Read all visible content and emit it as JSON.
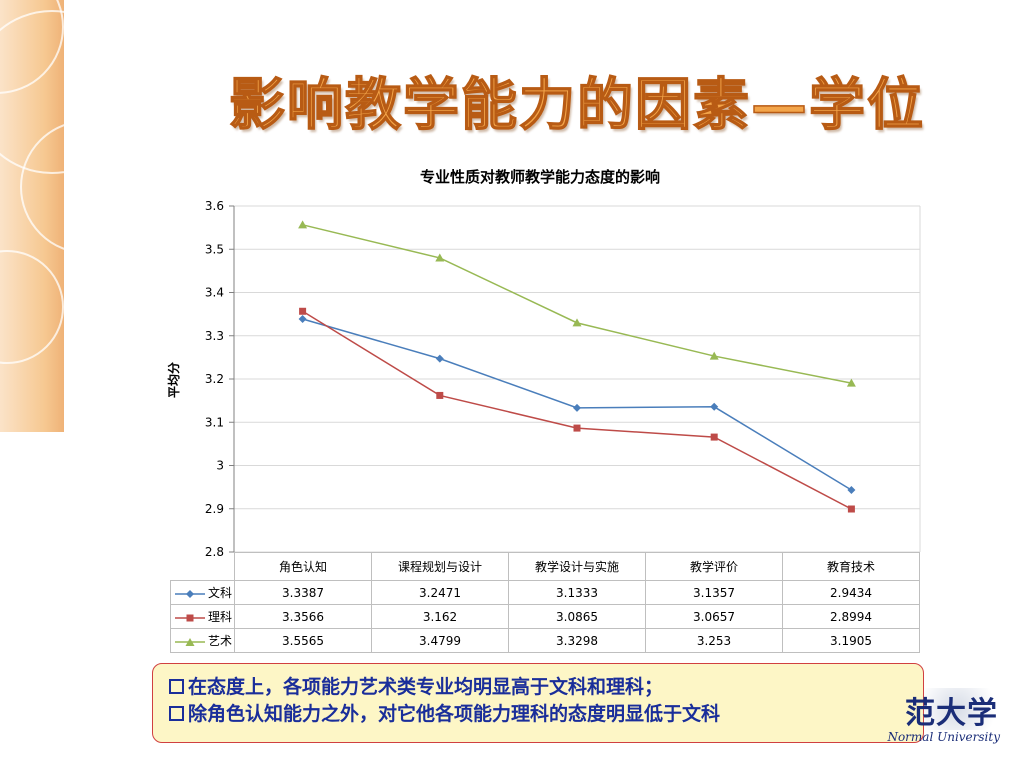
{
  "slide": {
    "title": "影响教学能力的因素—学位"
  },
  "chart_data": {
    "type": "line",
    "title": "专业性质对教师教学能力态度的影响",
    "xlabel": "",
    "ylabel": "平均分",
    "ylim": [
      2.8,
      3.6
    ],
    "yticks": [
      "3.6",
      "3.5",
      "3.4",
      "3.3",
      "3.2",
      "3.1",
      "3",
      "2.9",
      "2.8"
    ],
    "yticks_values": [
      3.6,
      3.5,
      3.4,
      3.3,
      3.2,
      3.1,
      3.0,
      2.9,
      2.8
    ],
    "grid": true,
    "legend": "data-table",
    "categories": [
      "角色认知",
      "课程规划与设计",
      "教学设计与实施",
      "教学评价",
      "教育技术"
    ],
    "series": [
      {
        "name": "文科",
        "color": "#4a7ebb",
        "marker": "diamond",
        "values": [
          3.3387,
          3.2471,
          3.1333,
          3.1357,
          2.9434
        ],
        "labels": [
          "3.3387",
          "3.2471",
          "3.1333",
          "3.1357",
          "2.9434"
        ]
      },
      {
        "name": "理科",
        "color": "#be4b48",
        "marker": "square",
        "values": [
          3.3566,
          3.162,
          3.0865,
          3.0657,
          2.8994
        ],
        "labels": [
          "3.3566",
          "3.162",
          "3.0865",
          "3.0657",
          "2.8994"
        ]
      },
      {
        "name": "艺术",
        "color": "#98b954",
        "marker": "triangle",
        "values": [
          3.5565,
          3.4799,
          3.3298,
          3.253,
          3.1905
        ],
        "labels": [
          "3.5565",
          "3.4799",
          "3.3298",
          "3.253",
          "3.1905"
        ]
      }
    ]
  },
  "notes": [
    "在态度上，各项能力艺术类专业均明显高于文科和理科；",
    "除角色认知能力之外，对它他各项能力理科的态度明显低于文科"
  ],
  "logo": {
    "chars": "范大学",
    "english": "Normal University"
  }
}
